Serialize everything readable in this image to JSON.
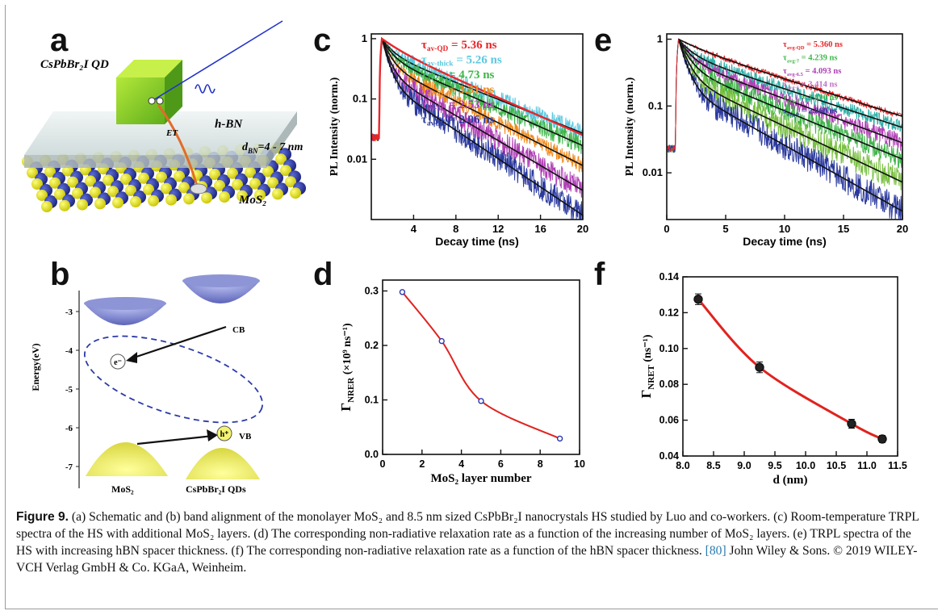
{
  "panels": {
    "a": {
      "letter": "a",
      "labels": {
        "qd": "CsPbBr₂I  QD",
        "et": "ET",
        "hbn": "h-BN",
        "dbn_sym": "d",
        "dbn_sub": "BN",
        "dbn_val": "=4 - 7 nm",
        "mos2": "MoS₂"
      }
    },
    "b": {
      "letter": "b",
      "ylabel": "Energy(eV)",
      "yticks": [
        "-3",
        "-4",
        "-5",
        "-6",
        "-7"
      ],
      "cb": "CB",
      "vb": "VB",
      "electron": "e⁻",
      "hole": "h⁺",
      "mos2": "MoS₂",
      "qds": "CsPbBr₂I QDs"
    },
    "c": {
      "letter": "c"
    },
    "d": {
      "letter": "d"
    },
    "e": {
      "letter": "e"
    },
    "f": {
      "letter": "f"
    }
  },
  "chart_data": [
    {
      "panel": "c",
      "type": "line",
      "xlabel": "Decay time (ns)",
      "ylabel": "PL Intensity (norm.)",
      "xlim": [
        0,
        20
      ],
      "ylim": [
        0.001,
        1.2
      ],
      "yscale": "log",
      "xticks": [
        4,
        8,
        12,
        16,
        20
      ],
      "yticks": [
        1,
        0.1,
        0.01
      ],
      "ytick_labels": [
        "1",
        "0.1",
        "0.01"
      ],
      "legend": [
        {
          "sym": "τ",
          "sub": "av-QD",
          "text": " = 5.36 ns",
          "color": "#e8262a"
        },
        {
          "sym": "τ",
          "sub": "av-thick",
          "text": " = 5.26 ns",
          "color": "#5cc8e0"
        },
        {
          "sym": "τ",
          "sub": "av-9L",
          "text": " = 4.73 ns",
          "color": "#3fb54a"
        },
        {
          "sym": "τ",
          "sub": "av-5L",
          "text": " = 3.51 ns",
          "color": "#f08a1c"
        },
        {
          "sym": "τ",
          "sub": "av-3L",
          "text": " = 2.53 ns",
          "color": "#b03fb5"
        },
        {
          "sym": "τ",
          "sub": "av-1L",
          "text": " = 2.06 ns",
          "color": "#2b3a9e"
        }
      ],
      "series": [
        {
          "color": "#5cc8e0",
          "tau1": 0.9,
          "tau2": 6.2,
          "a": 0.42,
          "noise": 0.35,
          "floor": 0.03
        },
        {
          "color": "#3fb54a",
          "tau1": 0.8,
          "tau2": 5.6,
          "a": 0.5,
          "noise": 0.35,
          "floor": 0.02
        },
        {
          "color": "#f08a1c",
          "tau1": 0.7,
          "tau2": 4.9,
          "a": 0.62,
          "noise": 0.3,
          "floor": 0.01
        },
        {
          "color": "#b03fb5",
          "tau1": 0.6,
          "tau2": 4.2,
          "a": 0.72,
          "noise": 0.45,
          "floor": 0.004
        },
        {
          "color": "#2b3a9e",
          "tau1": 0.55,
          "tau2": 3.7,
          "a": 0.8,
          "noise": 0.5,
          "floor": 0.002
        },
        {
          "color": "#e8262a",
          "tau1": 1.6,
          "tau2": 5.6,
          "a": 0.25,
          "noise": 0.0,
          "floor": 0.002,
          "cut": 1.6
        }
      ]
    },
    {
      "panel": "d",
      "type": "line",
      "xlabel": "MoS₂ layer number",
      "ylabel": "Γ",
      "ylabel_sub": "NRER",
      "ylabel_rest": " (×10⁹ ns⁻¹)",
      "xlim": [
        0,
        10
      ],
      "ylim": [
        0,
        0.32
      ],
      "xticks": [
        0,
        2,
        4,
        6,
        8,
        10
      ],
      "yticks": [
        0.0,
        0.1,
        0.2,
        0.3
      ],
      "ytick_labels": [
        "0.0",
        "0.1",
        "0.2",
        "0.3"
      ],
      "x": [
        1,
        3,
        5,
        9
      ],
      "y": [
        0.298,
        0.208,
        0.098,
        0.029
      ]
    },
    {
      "panel": "e",
      "type": "line",
      "xlabel": "Decay time (ns)",
      "ylabel": "PL Intensity (norm.)",
      "xlim": [
        0,
        20
      ],
      "ylim": [
        0.002,
        1.2
      ],
      "yscale": "log",
      "xticks": [
        0,
        5,
        10,
        15,
        20
      ],
      "yticks": [
        1,
        0.1,
        0.01
      ],
      "ytick_labels": [
        "1",
        "0.1",
        "0.01"
      ],
      "legend": [
        {
          "sym": "τ",
          "sub": "avg-QD",
          "text": " = 5.360 ns",
          "color": "#e8262a"
        },
        {
          "sym": "τ",
          "sub": "avg-7",
          "text": " = 4.239 ns",
          "color": "#3fb54a"
        },
        {
          "sym": "τ",
          "sub": "avg-6.5",
          "text": " = 4.093 ns",
          "color": "#b03fb5"
        },
        {
          "sym": "τ",
          "sub": "avg-5",
          "text": " = 3.414 ns",
          "color": "#c070c8"
        },
        {
          "sym": "τ",
          "sub": "avg-4",
          "text": " = 2.890 ns",
          "color": "#3fb54a"
        },
        {
          "sym": "τ",
          "sub": "avg-0",
          "text": " = 2.060 ns",
          "color": "#2b3a9e"
        }
      ],
      "series": [
        {
          "color": "#2fb0a8",
          "tau1": 1.0,
          "tau2": 7.5,
          "a": 0.4,
          "noise": 0.25,
          "floor": 0.01
        },
        {
          "color": "#b03fb5",
          "tau1": 0.9,
          "tau2": 6.6,
          "a": 0.5,
          "noise": 0.3,
          "floor": 0.008
        },
        {
          "color": "#3fb54a",
          "tau1": 0.8,
          "tau2": 6.0,
          "a": 0.62,
          "noise": 0.35,
          "floor": 0.006
        },
        {
          "color": "#7ac043",
          "tau1": 0.7,
          "tau2": 5.2,
          "a": 0.72,
          "noise": 0.45,
          "floor": 0.004
        },
        {
          "color": "#2b3a9e",
          "tau1": 0.6,
          "tau2": 4.4,
          "a": 0.8,
          "noise": 0.5,
          "floor": 0.003
        },
        {
          "color": "#e8262a",
          "tau1": 2.0,
          "tau2": 7.8,
          "a": 0.2,
          "noise": 0.1,
          "floor": 0.01
        }
      ]
    },
    {
      "panel": "f",
      "type": "line",
      "xlabel": "d (nm)",
      "ylabel": "Γ",
      "ylabel_sub": "NRET",
      "ylabel_rest": " (ns⁻¹)",
      "xlim": [
        8.0,
        11.5
      ],
      "ylim": [
        0.04,
        0.14
      ],
      "xticks": [
        8.0,
        8.5,
        9.0,
        9.5,
        10.0,
        10.5,
        11.0,
        11.5
      ],
      "xtick_labels": [
        "8.0",
        "8.5",
        "9.0",
        "9.5",
        "10.0",
        "10.5",
        "11.0",
        "11.5"
      ],
      "yticks": [
        0.04,
        0.06,
        0.08,
        0.1,
        0.12,
        0.14
      ],
      "ytick_labels": [
        "0.04",
        "0.06",
        "0.08",
        "0.10",
        "0.12",
        "0.14"
      ],
      "x": [
        8.25,
        9.25,
        10.75,
        11.25
      ],
      "y": [
        0.1275,
        0.0895,
        0.058,
        0.0495
      ],
      "err": [
        0.003,
        0.003,
        0.0025,
        0.002
      ]
    }
  ],
  "caption": {
    "fig": "Figure 9.",
    "text": " (a) Schematic and (b) band alignment of the monolayer MoS₂ and 8.5 nm sized CsPbBr₂I nanocrystals HS studied by Luo and co-workers. (c) Room-temperature TRPL spectra of the HS with additional MoS₂ layers. (d) The corresponding non-radiative relaxation rate as a function of the increasing number of MoS₂ layers. (e) TRPL spectra of the HS with increasing hBN spacer thickness. (f) The corresponding non-radiative relaxation rate as a function of the hBN spacer thickness. ",
    "ref": "[80]",
    "credit": " John Wiley & Sons. © 2019 WILEY-VCH Verlag GmbH & Co. KGaA, Weinheim."
  }
}
